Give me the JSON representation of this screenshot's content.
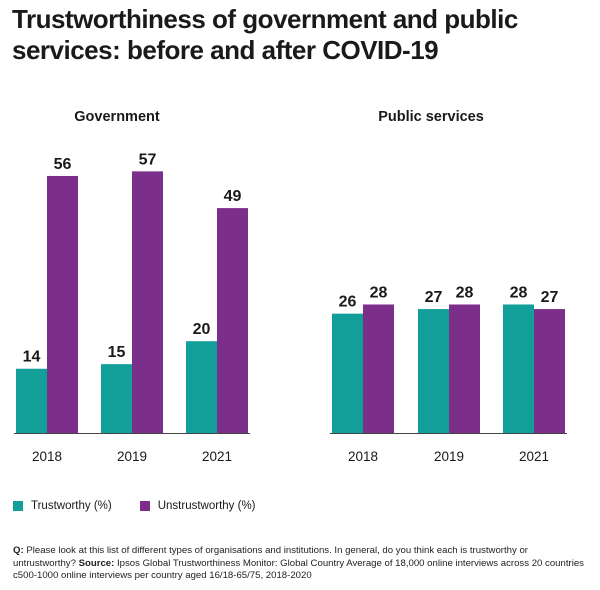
{
  "title": "Trustworthiness of government and public services: before and after COVID-19",
  "colors": {
    "trustworthy": "#129f9a",
    "untrustworthy": "#7b2e8a",
    "axis": "#444444"
  },
  "legend": {
    "trustworthy": "Trustworthy (%)",
    "untrustworthy": "Unstrustworthy (%)"
  },
  "chart_data": [
    {
      "type": "bar",
      "title": "Government",
      "categories": [
        "2018",
        "2019",
        "2021"
      ],
      "series": [
        {
          "name": "Trustworthy (%)",
          "values": [
            14,
            15,
            20
          ]
        },
        {
          "name": "Unstrustworthy (%)",
          "values": [
            56,
            57,
            49
          ]
        }
      ],
      "ylim": [
        0,
        60
      ]
    },
    {
      "type": "bar",
      "title": "Public services",
      "categories": [
        "2018",
        "2019",
        "2021"
      ],
      "series": [
        {
          "name": "Trustworthy (%)",
          "values": [
            26,
            27,
            28
          ]
        },
        {
          "name": "Unstrustworthy (%)",
          "values": [
            28,
            28,
            27
          ]
        }
      ],
      "ylim": [
        0,
        60
      ]
    }
  ],
  "footnote": {
    "q_label": "Q:",
    "q_text": "Please look at this list of different types of organisations and institutions. In general, do you think each is trustworthy or untrustworthy?",
    "source_label": "Source:",
    "source_text": "Ipsos Global Trustworthiness Monitor: Global Country Average of 18,000 online interviews across 20 countries c500-1000 online interviews per country aged 16/18-65/75, 2018-2020"
  }
}
